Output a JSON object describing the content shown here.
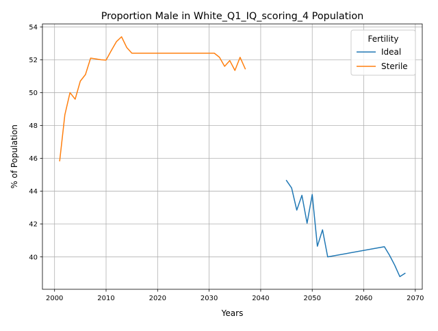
{
  "chart_data": {
    "type": "line",
    "title": "Proportion Male in White_Q1_IQ_scoring_4 Population",
    "xlabel": "Years",
    "ylabel": "% of Population",
    "xlim": [
      1997.65,
      2071.35
    ],
    "ylim": [
      38.03,
      54.18
    ],
    "x_ticks": [
      2000,
      2010,
      2020,
      2030,
      2040,
      2050,
      2060,
      2070
    ],
    "y_ticks": [
      40,
      42,
      44,
      46,
      48,
      50,
      52,
      54
    ],
    "grid": true,
    "legend": {
      "title": "Fertility",
      "placement": "top-right"
    },
    "series": [
      {
        "name": "Ideal",
        "color": "#1f77b4",
        "x": [
          2045,
          2046,
          2047,
          2048,
          2049,
          2050,
          2051,
          2052,
          2053,
          2064,
          2065,
          2066,
          2067,
          2068
        ],
        "y": [
          44.65,
          44.2,
          42.85,
          43.75,
          42.05,
          43.8,
          40.65,
          41.65,
          40.0,
          40.62,
          40.1,
          39.5,
          38.8,
          39.0
        ]
      },
      {
        "name": "Sterile",
        "color": "#ff7f0e",
        "x": [
          2001,
          2002,
          2003,
          2004,
          2005,
          2006,
          2007,
          2008,
          2009,
          2010,
          2011,
          2012,
          2013,
          2014,
          2015,
          2030,
          2031,
          2032,
          2033,
          2034,
          2035,
          2036,
          2037
        ],
        "y": [
          45.85,
          48.65,
          50.0,
          49.6,
          50.7,
          51.1,
          52.1,
          52.05,
          52.0,
          51.98,
          52.55,
          53.1,
          53.4,
          52.75,
          52.4,
          52.4,
          52.4,
          52.15,
          51.6,
          51.95,
          51.35,
          52.15,
          51.45
        ]
      }
    ]
  }
}
